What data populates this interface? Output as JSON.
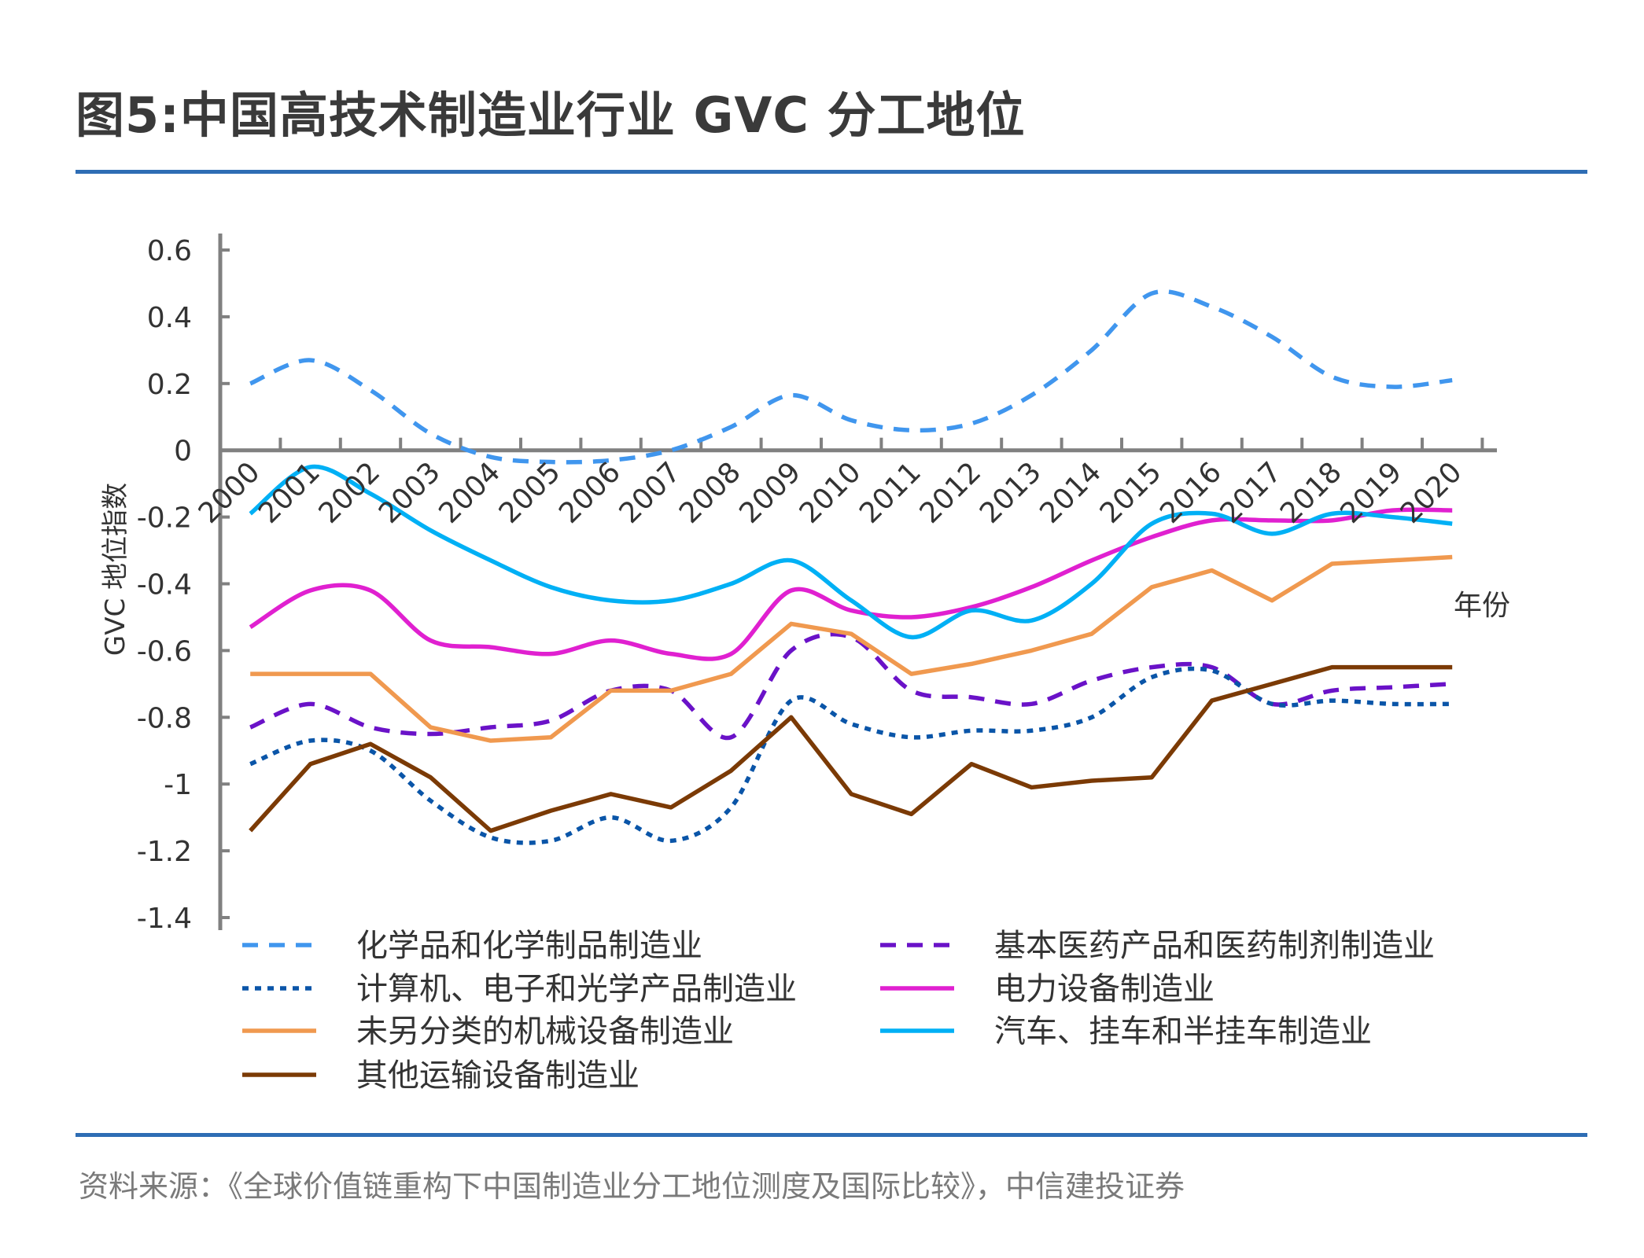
{
  "title": "图5:中国高技术制造业行业 GVC 分工地位",
  "source": "资料来源：《全球价值链重构下中国制造业分工地位测度及国际比较》，中信建投证券",
  "chart_data": {
    "type": "line",
    "title": "",
    "xlabel": "年份",
    "ylabel": "GVC 地位指数",
    "ylim": [
      -1.4,
      0.6
    ],
    "yticks": [
      "0.6",
      "0.4",
      "0.2",
      "0",
      "-0.2",
      "-0.4",
      "-0.6",
      "-0.8",
      "-1",
      "-1.2",
      "-1.4"
    ],
    "grid": false,
    "legend_position": "bottom",
    "categories": [
      "2000",
      "2001",
      "2002",
      "2003",
      "2004",
      "2005",
      "2006",
      "2007",
      "2008",
      "2009",
      "2010",
      "2011",
      "2012",
      "2013",
      "2014",
      "2015",
      "2016",
      "2017",
      "2018",
      "2019",
      "2020"
    ],
    "series": [
      {
        "name": "化学品和化学制品制造业",
        "color": "#4096ee",
        "style": "dashed",
        "smooth": true,
        "values": [
          0.2,
          0.27,
          0.18,
          0.05,
          -0.02,
          -0.035,
          -0.03,
          0.0,
          0.07,
          0.165,
          0.09,
          0.06,
          0.08,
          0.165,
          0.3,
          0.47,
          0.43,
          0.34,
          0.22,
          0.19,
          0.21
        ]
      },
      {
        "name": "基本医药产品和医药制剂制造业",
        "color": "#6a12c8",
        "style": "dashed",
        "smooth": true,
        "values": [
          -0.83,
          -0.76,
          -0.83,
          -0.85,
          -0.83,
          -0.81,
          -0.72,
          -0.72,
          -0.86,
          -0.6,
          -0.56,
          -0.72,
          -0.74,
          -0.76,
          -0.69,
          -0.65,
          -0.65,
          -0.76,
          -0.72,
          -0.71,
          -0.7
        ]
      },
      {
        "name": "计算机、电子和光学产品制造业",
        "color": "#0a55a8",
        "style": "dotted",
        "smooth": true,
        "values": [
          -0.94,
          -0.87,
          -0.9,
          -1.05,
          -1.16,
          -1.17,
          -1.1,
          -1.17,
          -1.07,
          -0.75,
          -0.82,
          -0.86,
          -0.84,
          -0.84,
          -0.8,
          -0.68,
          -0.66,
          -0.76,
          -0.75,
          -0.76,
          -0.76
        ]
      },
      {
        "name": "电力设备制造业",
        "color": "#e020d0",
        "style": "solid",
        "smooth": true,
        "values": [
          -0.53,
          -0.42,
          -0.42,
          -0.57,
          -0.59,
          -0.61,
          -0.57,
          -0.61,
          -0.61,
          -0.42,
          -0.48,
          -0.5,
          -0.47,
          -0.41,
          -0.33,
          -0.26,
          -0.21,
          -0.21,
          -0.21,
          -0.18,
          -0.18
        ]
      },
      {
        "name": "未另分类的机械设备制造业",
        "color": "#f0994f",
        "style": "solid",
        "smooth": false,
        "values": [
          -0.67,
          -0.67,
          -0.67,
          -0.83,
          -0.87,
          -0.86,
          -0.72,
          -0.72,
          -0.67,
          -0.52,
          -0.55,
          -0.67,
          -0.64,
          -0.6,
          -0.55,
          -0.41,
          -0.36,
          -0.45,
          -0.34,
          -0.33,
          -0.32
        ]
      },
      {
        "name": "汽车、挂车和半挂车制造业",
        "color": "#00b0f5",
        "style": "solid",
        "smooth": true,
        "values": [
          -0.19,
          -0.05,
          -0.13,
          -0.24,
          -0.33,
          -0.41,
          -0.45,
          -0.45,
          -0.4,
          -0.33,
          -0.45,
          -0.56,
          -0.48,
          -0.51,
          -0.4,
          -0.22,
          -0.19,
          -0.25,
          -0.19,
          -0.2,
          -0.22
        ]
      },
      {
        "name": "其他运输设备制造业",
        "color": "#7b3a05",
        "style": "solid",
        "smooth": false,
        "values": [
          -1.14,
          -0.94,
          -0.88,
          -0.98,
          -1.14,
          -1.08,
          -1.03,
          -1.07,
          -0.96,
          -0.8,
          -1.03,
          -1.09,
          -0.94,
          -1.01,
          -0.99,
          -0.98,
          -0.75,
          -0.7,
          -0.65,
          -0.65,
          -0.65
        ]
      }
    ]
  },
  "colors": {
    "rule": "#2e6db4",
    "axis": "#808080"
  }
}
